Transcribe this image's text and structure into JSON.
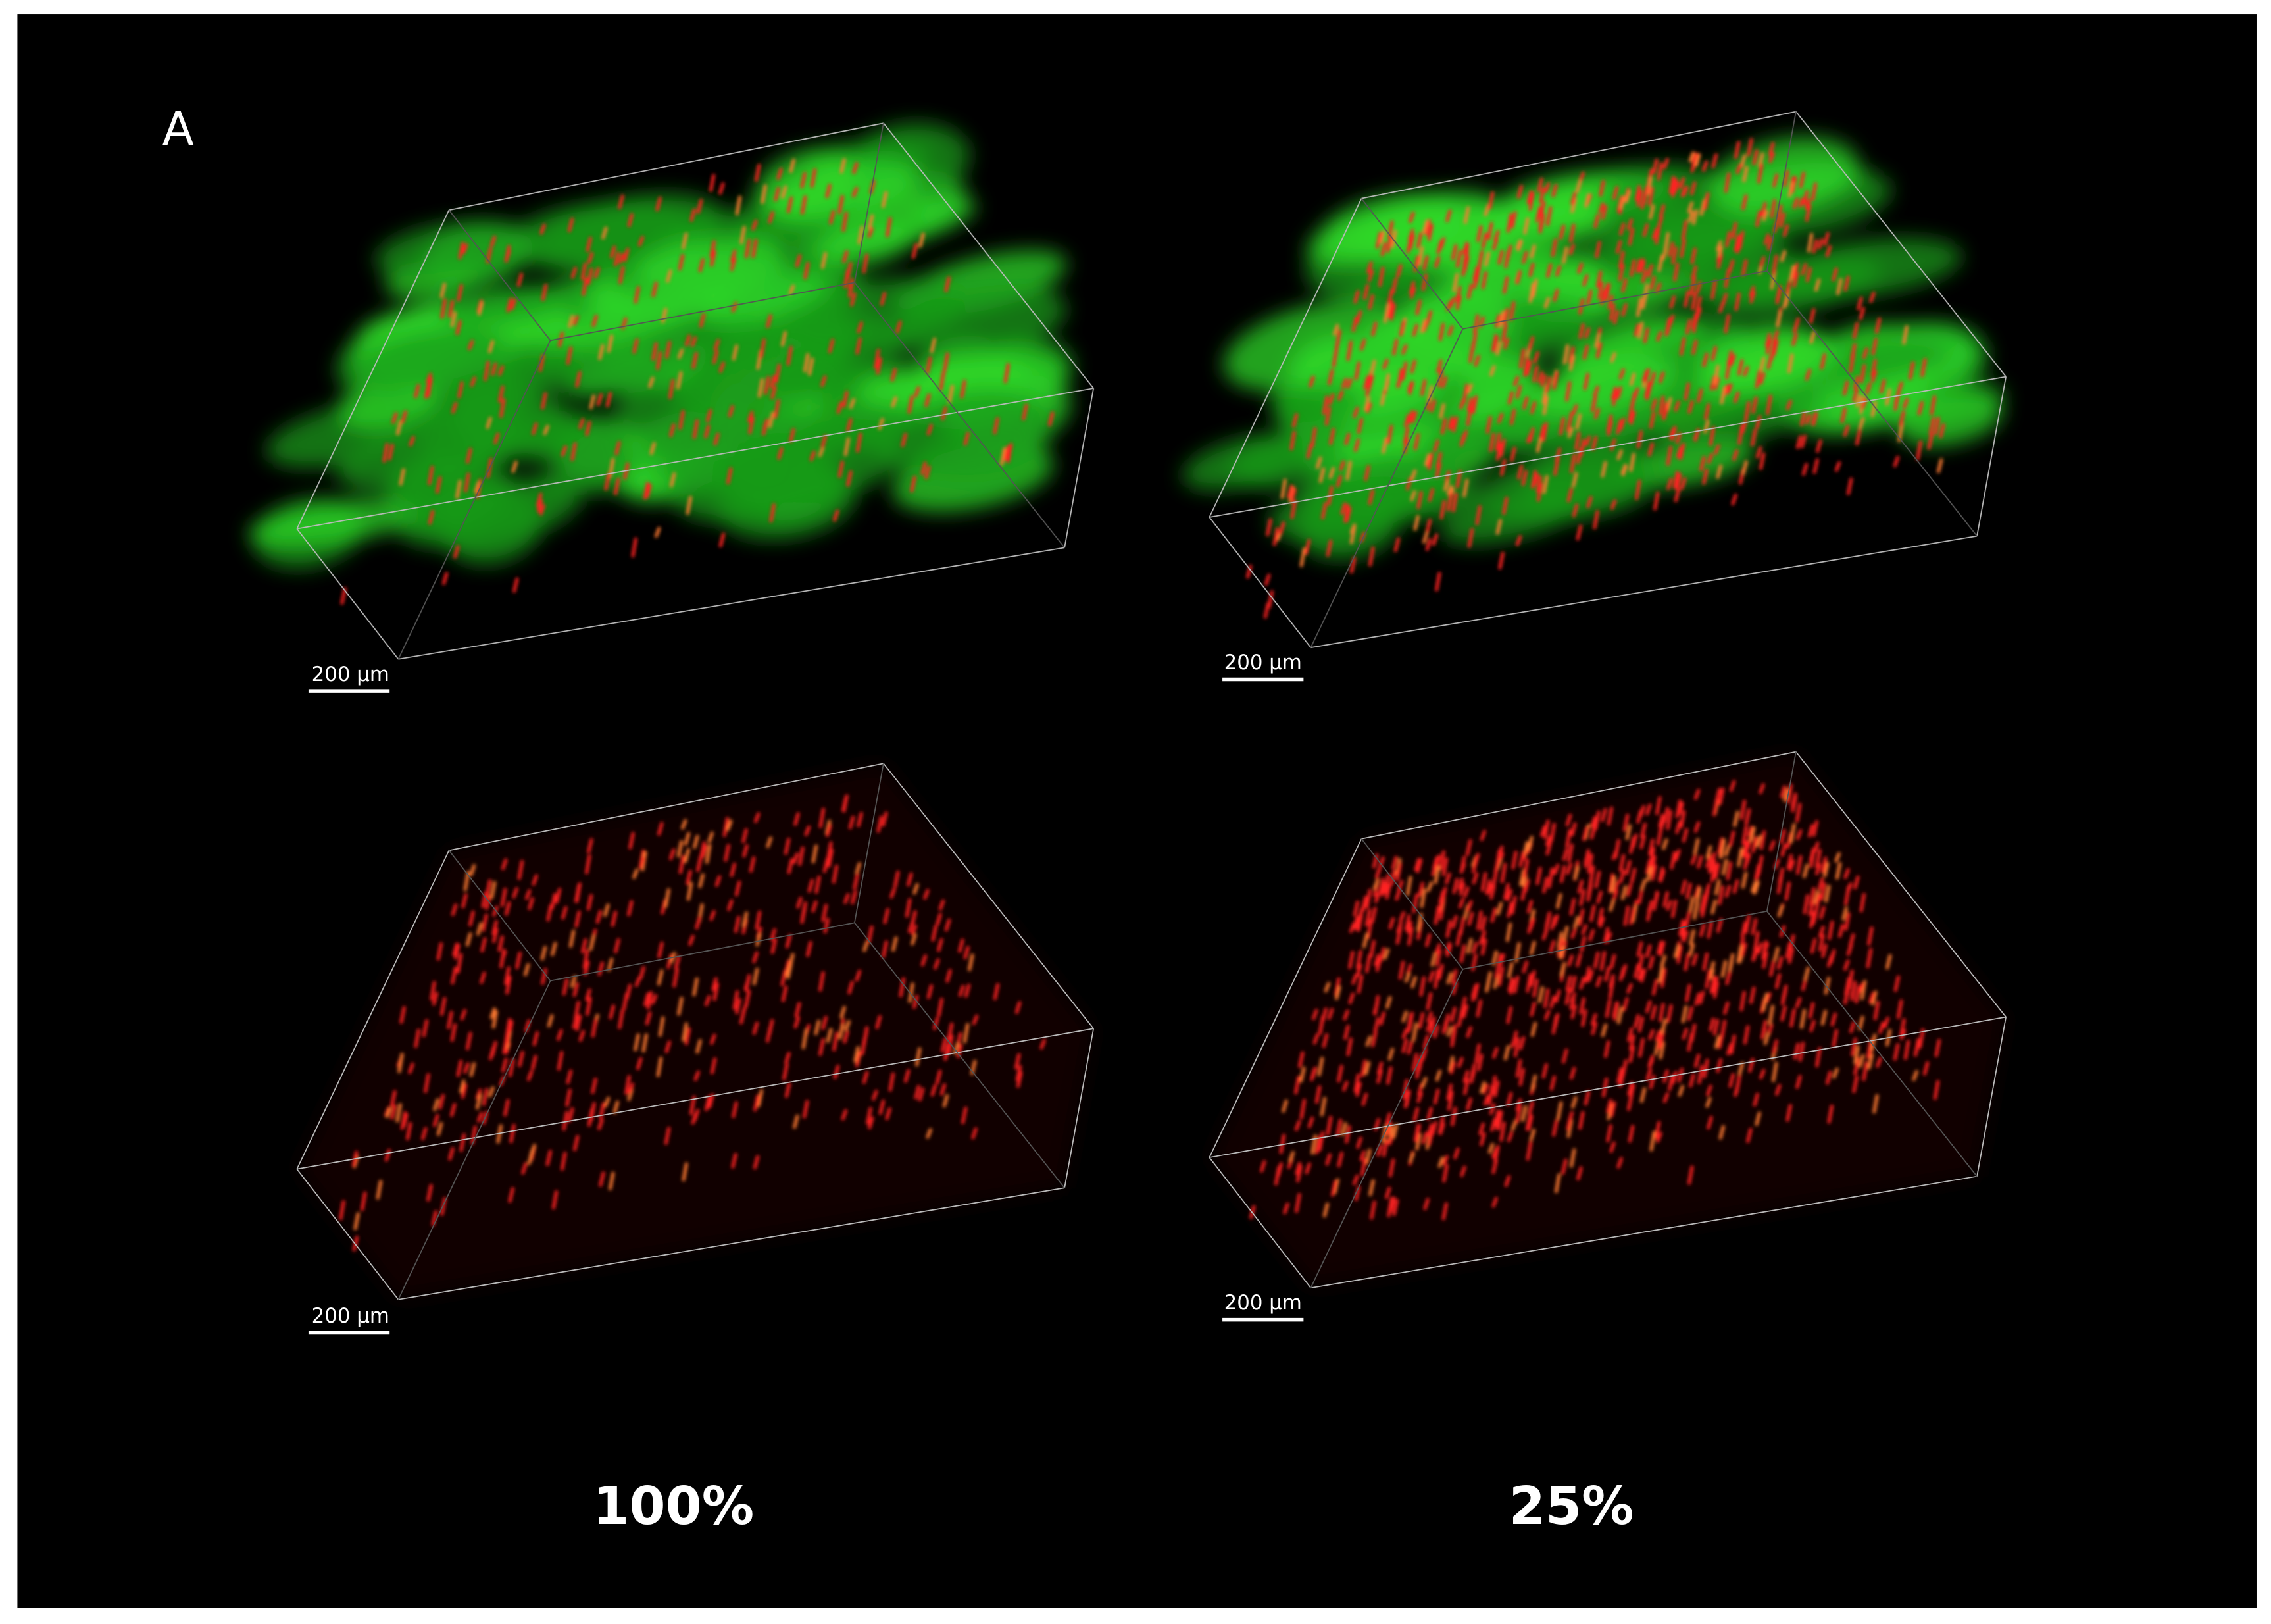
{
  "panel_label": "A",
  "panels": [
    {
      "scale_bar": "200 µm"
    },
    {
      "scale_bar": "200 µm"
    },
    {
      "scale_bar": "200 µm"
    },
    {
      "scale_bar": "200 µm"
    }
  ],
  "columns": [
    "100%",
    "25%"
  ]
}
